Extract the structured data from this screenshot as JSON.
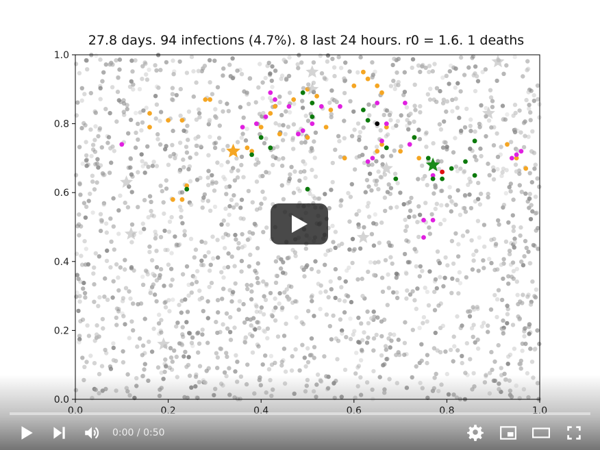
{
  "player": {
    "time_current": "0:00",
    "time_separator": " / ",
    "time_total": "0:50",
    "progress_fraction": 0.0,
    "icons": {
      "play": "play-icon",
      "next": "skip-next-icon",
      "volume": "volume-icon",
      "settings": "gear-icon",
      "miniplayer": "miniplayer-icon",
      "theater": "theater-mode-icon",
      "fullscreen": "fullscreen-icon",
      "big_play": "big-play-icon"
    },
    "colors": {
      "accent": "#ff0000",
      "overlay": "#212121"
    }
  },
  "chart_data": {
    "type": "scatter",
    "title": "27.8 days. 94 infections (4.7%). 8 last 24 hours. r0 = 1.6. 1 deaths",
    "xlim": [
      0.0,
      1.0
    ],
    "ylim": [
      0.0,
      1.0
    ],
    "xticks": [
      "0.0",
      "0.2",
      "0.4",
      "0.6",
      "0.8",
      "1.0"
    ],
    "yticks": [
      "0.0",
      "0.2",
      "0.4",
      "0.6",
      "0.8",
      "1.0"
    ],
    "grid": false,
    "colors": {
      "healthy": "#9a9a9a",
      "infected_orange": "#f5a623",
      "infected_magenta": "#e020e0",
      "recovered_green": "#0c7a0c",
      "dead_black": "#000000",
      "red": "#e01010",
      "star_orange": "#f5a623",
      "star_green": "#1a8a1a",
      "star_gray": "#b0b0b0"
    },
    "series": [
      {
        "color_key": "infected_orange",
        "points": [
          [
            0.16,
            0.83
          ],
          [
            0.16,
            0.79
          ],
          [
            0.2,
            0.81
          ],
          [
            0.23,
            0.81
          ],
          [
            0.24,
            0.62
          ],
          [
            0.23,
            0.58
          ],
          [
            0.21,
            0.58
          ],
          [
            0.28,
            0.87
          ],
          [
            0.29,
            0.87
          ],
          [
            0.37,
            0.73
          ],
          [
            0.38,
            0.72
          ],
          [
            0.4,
            0.79
          ],
          [
            0.42,
            0.83
          ],
          [
            0.44,
            0.77
          ],
          [
            0.43,
            0.85
          ],
          [
            0.47,
            0.87
          ],
          [
            0.5,
            0.76
          ],
          [
            0.5,
            0.9
          ],
          [
            0.51,
            0.86
          ],
          [
            0.52,
            0.88
          ],
          [
            0.54,
            0.79
          ],
          [
            0.55,
            0.84
          ],
          [
            0.58,
            0.7
          ],
          [
            0.6,
            0.91
          ],
          [
            0.62,
            0.95
          ],
          [
            0.63,
            0.93
          ],
          [
            0.65,
            0.91
          ],
          [
            0.66,
            0.89
          ],
          [
            0.65,
            0.72
          ],
          [
            0.66,
            0.74
          ],
          [
            0.67,
            0.79
          ],
          [
            0.7,
            0.72
          ],
          [
            0.73,
            0.76
          ],
          [
            0.74,
            0.7
          ],
          [
            0.93,
            0.74
          ],
          [
            0.95,
            0.7
          ],
          [
            0.97,
            0.67
          ]
        ]
      },
      {
        "color_key": "infected_magenta",
        "points": [
          [
            0.1,
            0.74
          ],
          [
            0.36,
            0.79
          ],
          [
            0.39,
            0.8
          ],
          [
            0.41,
            0.82
          ],
          [
            0.42,
            0.89
          ],
          [
            0.43,
            0.87
          ],
          [
            0.46,
            0.85
          ],
          [
            0.48,
            0.77
          ],
          [
            0.49,
            0.78
          ],
          [
            0.51,
            0.8
          ],
          [
            0.53,
            0.85
          ],
          [
            0.57,
            0.85
          ],
          [
            0.63,
            0.69
          ],
          [
            0.64,
            0.7
          ],
          [
            0.65,
            0.86
          ],
          [
            0.66,
            0.75
          ],
          [
            0.67,
            0.8
          ],
          [
            0.71,
            0.86
          ],
          [
            0.72,
            0.74
          ],
          [
            0.75,
            0.52
          ],
          [
            0.75,
            0.47
          ],
          [
            0.77,
            0.52
          ],
          [
            0.77,
            0.65
          ],
          [
            0.79,
            0.66
          ],
          [
            0.94,
            0.7
          ],
          [
            0.95,
            0.71
          ],
          [
            0.96,
            0.72
          ]
        ]
      },
      {
        "color_key": "recovered_green",
        "points": [
          [
            0.24,
            0.61
          ],
          [
            0.38,
            0.71
          ],
          [
            0.4,
            0.76
          ],
          [
            0.42,
            0.73
          ],
          [
            0.49,
            0.89
          ],
          [
            0.51,
            0.86
          ],
          [
            0.51,
            0.82
          ],
          [
            0.5,
            0.61
          ],
          [
            0.62,
            0.84
          ],
          [
            0.63,
            0.81
          ],
          [
            0.67,
            0.73
          ],
          [
            0.69,
            0.64
          ],
          [
            0.73,
            0.76
          ],
          [
            0.76,
            0.7
          ],
          [
            0.77,
            0.64
          ],
          [
            0.79,
            0.64
          ],
          [
            0.81,
            0.67
          ],
          [
            0.84,
            0.69
          ],
          [
            0.86,
            0.65
          ],
          [
            0.86,
            0.75
          ]
        ]
      },
      {
        "color_key": "dead_black",
        "points": [
          [
            0.65,
            0.8
          ]
        ]
      },
      {
        "color_key": "red",
        "points": [
          [
            0.79,
            0.66
          ]
        ]
      }
    ],
    "stars": [
      {
        "color_key": "star_orange",
        "x": 0.34,
        "y": 0.72
      },
      {
        "color_key": "star_green",
        "x": 0.77,
        "y": 0.68
      },
      {
        "color_key": "star_gray",
        "x": 0.91,
        "y": 0.98
      },
      {
        "color_key": "star_gray",
        "x": 0.89,
        "y": 0.83
      },
      {
        "color_key": "star_gray",
        "x": 0.51,
        "y": 0.9
      },
      {
        "color_key": "star_gray",
        "x": 0.11,
        "y": 0.63
      },
      {
        "color_key": "star_gray",
        "x": 0.12,
        "y": 0.48
      },
      {
        "color_key": "star_gray",
        "x": 0.62,
        "y": 0.47
      },
      {
        "color_key": "star_gray",
        "x": 0.19,
        "y": 0.16
      },
      {
        "color_key": "star_gray",
        "x": 0.51,
        "y": 0.95
      },
      {
        "color_key": "star_gray",
        "x": 0.67,
        "y": 0.67
      }
    ],
    "healthy_population_count": 1900
  }
}
